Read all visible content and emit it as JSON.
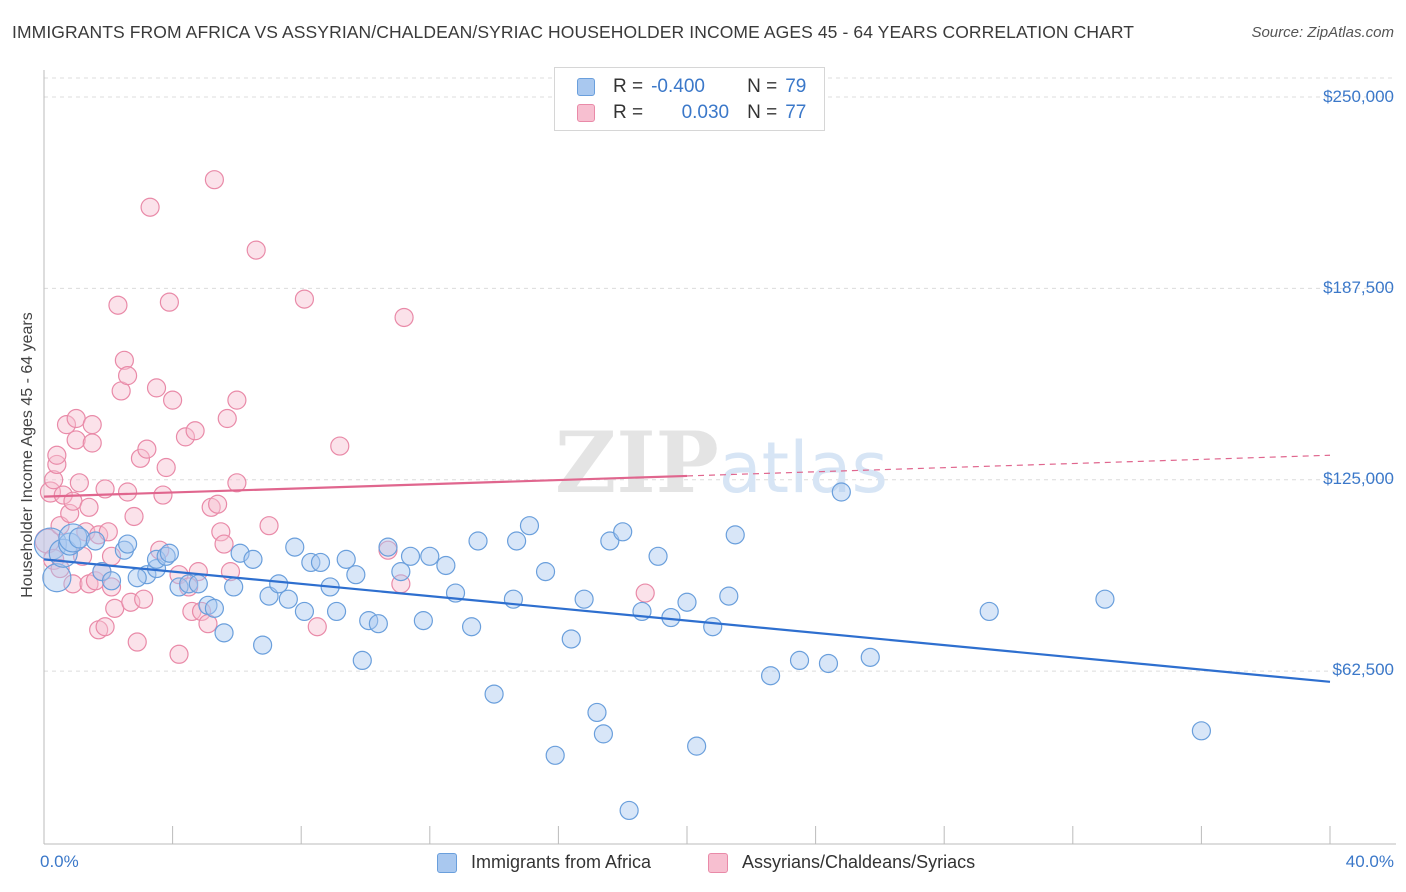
{
  "title": "IMMIGRANTS FROM AFRICA VS ASSYRIAN/CHALDEAN/SYRIAC HOUSEHOLDER INCOME AGES 45 - 64 YEARS CORRELATION CHART",
  "source": "Source: ZipAtlas.com",
  "watermark": "ZIPatlas",
  "colors": {
    "blue_fill": "#a9c8ef",
    "blue_stroke": "#6a9fdc",
    "blue_line": "#2e6fcf",
    "pink_fill": "#f7bfd0",
    "pink_stroke": "#e98aa8",
    "pink_line": "#e0668e",
    "tick_text": "#3b78c9",
    "grid": "#dcdcdc"
  },
  "legend_top": {
    "rows": [
      {
        "r_label": "R =",
        "r_value": "-0.400",
        "n_label": "N =",
        "n_value": "79"
      },
      {
        "r_label": "R =",
        "r_value": "0.030",
        "n_label": "N =",
        "n_value": "77"
      }
    ]
  },
  "legend_bottom": [
    "Immigrants from Africa",
    "Assyrians/Chaldeans/Syriacs"
  ],
  "chart_data": {
    "type": "scatter",
    "title": "IMMIGRANTS FROM AFRICA VS ASSYRIAN/CHALDEAN/SYRIAC HOUSEHOLDER INCOME AGES 45 - 64 YEARS CORRELATION CHART",
    "xlabel": "",
    "ylabel": "Householder Income Ages 45 - 64 years",
    "xlim": [
      0,
      40
    ],
    "ylim": [
      0,
      250000
    ],
    "x_tick_labels": [
      "0.0%",
      "40.0%"
    ],
    "y_ticks": [
      62500,
      125000,
      187500,
      250000
    ],
    "y_tick_labels": [
      "$62,500",
      "$125,000",
      "$187,500",
      "$250,000"
    ],
    "grid": "horizontal dashed",
    "legend_position": "top-center and bottom",
    "series": [
      {
        "name": "Immigrants from Africa",
        "r": -0.4,
        "n": 79,
        "trend": {
          "x": [
            0,
            40
          ],
          "y": [
            99000,
            59000
          ],
          "dashed_from": null
        },
        "points": [
          [
            0.2,
            104000,
            16
          ],
          [
            0.4,
            93000,
            14
          ],
          [
            0.6,
            101000,
            14
          ],
          [
            0.8,
            104000,
            11
          ],
          [
            0.9,
            106000,
            14
          ],
          [
            1.1,
            106000,
            10
          ],
          [
            1.8,
            95000,
            9
          ],
          [
            2.1,
            92000,
            9
          ],
          [
            2.5,
            102000,
            9
          ],
          [
            2.6,
            104000,
            9
          ],
          [
            3.2,
            94000,
            9
          ],
          [
            3.5,
            96000,
            9
          ],
          [
            3.5,
            99000,
            9
          ],
          [
            3.8,
            100000,
            9
          ],
          [
            3.9,
            101000,
            9
          ],
          [
            4.2,
            90000,
            9
          ],
          [
            4.5,
            91000,
            9
          ],
          [
            4.8,
            91000,
            9
          ],
          [
            5.1,
            84000,
            9
          ],
          [
            5.3,
            83000,
            9
          ],
          [
            5.6,
            75000,
            9
          ],
          [
            5.9,
            90000,
            9
          ],
          [
            6.1,
            101000,
            9
          ],
          [
            6.5,
            99000,
            9
          ],
          [
            6.8,
            71000,
            9
          ],
          [
            7.0,
            87000,
            9
          ],
          [
            7.3,
            91000,
            9
          ],
          [
            7.6,
            86000,
            9
          ],
          [
            7.8,
            103000,
            9
          ],
          [
            8.1,
            82000,
            9
          ],
          [
            8.3,
            98000,
            9
          ],
          [
            8.6,
            98000,
            9
          ],
          [
            8.9,
            90000,
            9
          ],
          [
            9.1,
            82000,
            9
          ],
          [
            9.4,
            99000,
            9
          ],
          [
            9.7,
            94000,
            9
          ],
          [
            9.9,
            66000,
            9
          ],
          [
            10.1,
            79000,
            9
          ],
          [
            10.4,
            78000,
            9
          ],
          [
            10.7,
            103000,
            9
          ],
          [
            11.1,
            95000,
            9
          ],
          [
            11.4,
            100000,
            9
          ],
          [
            11.8,
            79000,
            9
          ],
          [
            12.0,
            100000,
            9
          ],
          [
            12.5,
            97000,
            9
          ],
          [
            12.8,
            88000,
            9
          ],
          [
            13.3,
            77000,
            9
          ],
          [
            13.5,
            105000,
            9
          ],
          [
            14.0,
            55000,
            9
          ],
          [
            14.6,
            86000,
            9
          ],
          [
            14.7,
            105000,
            9
          ],
          [
            15.1,
            110000,
            9
          ],
          [
            15.6,
            95000,
            9
          ],
          [
            15.9,
            35000,
            9
          ],
          [
            16.4,
            73000,
            9
          ],
          [
            16.8,
            86000,
            9
          ],
          [
            17.2,
            49000,
            9
          ],
          [
            17.4,
            42000,
            9
          ],
          [
            17.6,
            105000,
            9
          ],
          [
            18.0,
            108000,
            9
          ],
          [
            18.2,
            17000,
            9
          ],
          [
            18.6,
            82000,
            9
          ],
          [
            19.1,
            100000,
            9
          ],
          [
            19.5,
            80000,
            9
          ],
          [
            20.0,
            85000,
            9
          ],
          [
            20.3,
            38000,
            9
          ],
          [
            20.8,
            77000,
            9
          ],
          [
            21.3,
            87000,
            9
          ],
          [
            21.5,
            107000,
            9
          ],
          [
            22.6,
            61000,
            9
          ],
          [
            23.5,
            66000,
            9
          ],
          [
            24.4,
            65000,
            9
          ],
          [
            24.8,
            121000,
            9
          ],
          [
            25.7,
            67000,
            9
          ],
          [
            29.4,
            82000,
            9
          ],
          [
            33.0,
            86000,
            9
          ],
          [
            36.0,
            43000,
            9
          ],
          [
            1.6,
            105000,
            9
          ],
          [
            2.9,
            93000,
            9
          ]
        ]
      },
      {
        "name": "Assyrians/Chaldeans/Syriacs",
        "r": 0.03,
        "n": 77,
        "trend": {
          "x": [
            0,
            40
          ],
          "y": [
            119500,
            133000
          ],
          "dashed_from": 20
        },
        "points": [
          [
            0.1,
            105000,
            12
          ],
          [
            0.2,
            121000,
            10
          ],
          [
            0.3,
            99000,
            10
          ],
          [
            0.3,
            125000,
            9
          ],
          [
            0.4,
            130000,
            9
          ],
          [
            0.4,
            133000,
            9
          ],
          [
            0.5,
            110000,
            9
          ],
          [
            0.5,
            96000,
            9
          ],
          [
            0.6,
            120000,
            9
          ],
          [
            0.7,
            143000,
            9
          ],
          [
            0.8,
            114000,
            9
          ],
          [
            0.9,
            118000,
            9
          ],
          [
            0.9,
            91000,
            9
          ],
          [
            1.0,
            138000,
            9
          ],
          [
            1.0,
            145000,
            9
          ],
          [
            1.1,
            124000,
            9
          ],
          [
            1.2,
            100000,
            9
          ],
          [
            1.3,
            108000,
            9
          ],
          [
            1.4,
            91000,
            9
          ],
          [
            1.4,
            116000,
            9
          ],
          [
            1.5,
            137000,
            9
          ],
          [
            1.5,
            143000,
            9
          ],
          [
            1.6,
            92000,
            9
          ],
          [
            1.7,
            76000,
            9
          ],
          [
            1.7,
            107000,
            9
          ],
          [
            1.8,
            95000,
            9
          ],
          [
            1.9,
            122000,
            9
          ],
          [
            1.9,
            77000,
            9
          ],
          [
            2.0,
            108000,
            9
          ],
          [
            2.1,
            90000,
            9
          ],
          [
            2.1,
            100000,
            9
          ],
          [
            2.2,
            83000,
            9
          ],
          [
            2.3,
            182000,
            9
          ],
          [
            2.4,
            154000,
            9
          ],
          [
            2.5,
            164000,
            9
          ],
          [
            2.6,
            159000,
            9
          ],
          [
            2.6,
            121000,
            9
          ],
          [
            2.7,
            85000,
            9
          ],
          [
            2.8,
            113000,
            9
          ],
          [
            2.9,
            72000,
            9
          ],
          [
            3.0,
            132000,
            9
          ],
          [
            3.1,
            86000,
            9
          ],
          [
            3.2,
            135000,
            9
          ],
          [
            3.3,
            214000,
            9
          ],
          [
            3.5,
            155000,
            9
          ],
          [
            3.6,
            102000,
            9
          ],
          [
            3.7,
            120000,
            9
          ],
          [
            3.8,
            129000,
            9
          ],
          [
            3.9,
            183000,
            9
          ],
          [
            4.0,
            151000,
            9
          ],
          [
            4.2,
            68000,
            9
          ],
          [
            4.2,
            94000,
            9
          ],
          [
            4.4,
            139000,
            9
          ],
          [
            4.5,
            90000,
            9
          ],
          [
            4.6,
            82000,
            9
          ],
          [
            4.7,
            141000,
            9
          ],
          [
            4.8,
            95000,
            9
          ],
          [
            4.9,
            82000,
            9
          ],
          [
            5.1,
            78000,
            9
          ],
          [
            5.2,
            116000,
            9
          ],
          [
            5.4,
            117000,
            9
          ],
          [
            5.5,
            108000,
            9
          ],
          [
            5.6,
            104000,
            9
          ],
          [
            5.7,
            145000,
            9
          ],
          [
            5.8,
            95000,
            9
          ],
          [
            6.0,
            151000,
            9
          ],
          [
            6.0,
            124000,
            9
          ],
          [
            6.6,
            200000,
            9
          ],
          [
            7.0,
            110000,
            9
          ],
          [
            8.1,
            184000,
            9
          ],
          [
            8.5,
            77000,
            9
          ],
          [
            9.2,
            136000,
            9
          ],
          [
            10.7,
            102000,
            9
          ],
          [
            11.1,
            91000,
            9
          ],
          [
            11.2,
            178000,
            9
          ],
          [
            18.7,
            88000,
            9
          ],
          [
            5.3,
            223000,
            9
          ]
        ]
      }
    ]
  }
}
